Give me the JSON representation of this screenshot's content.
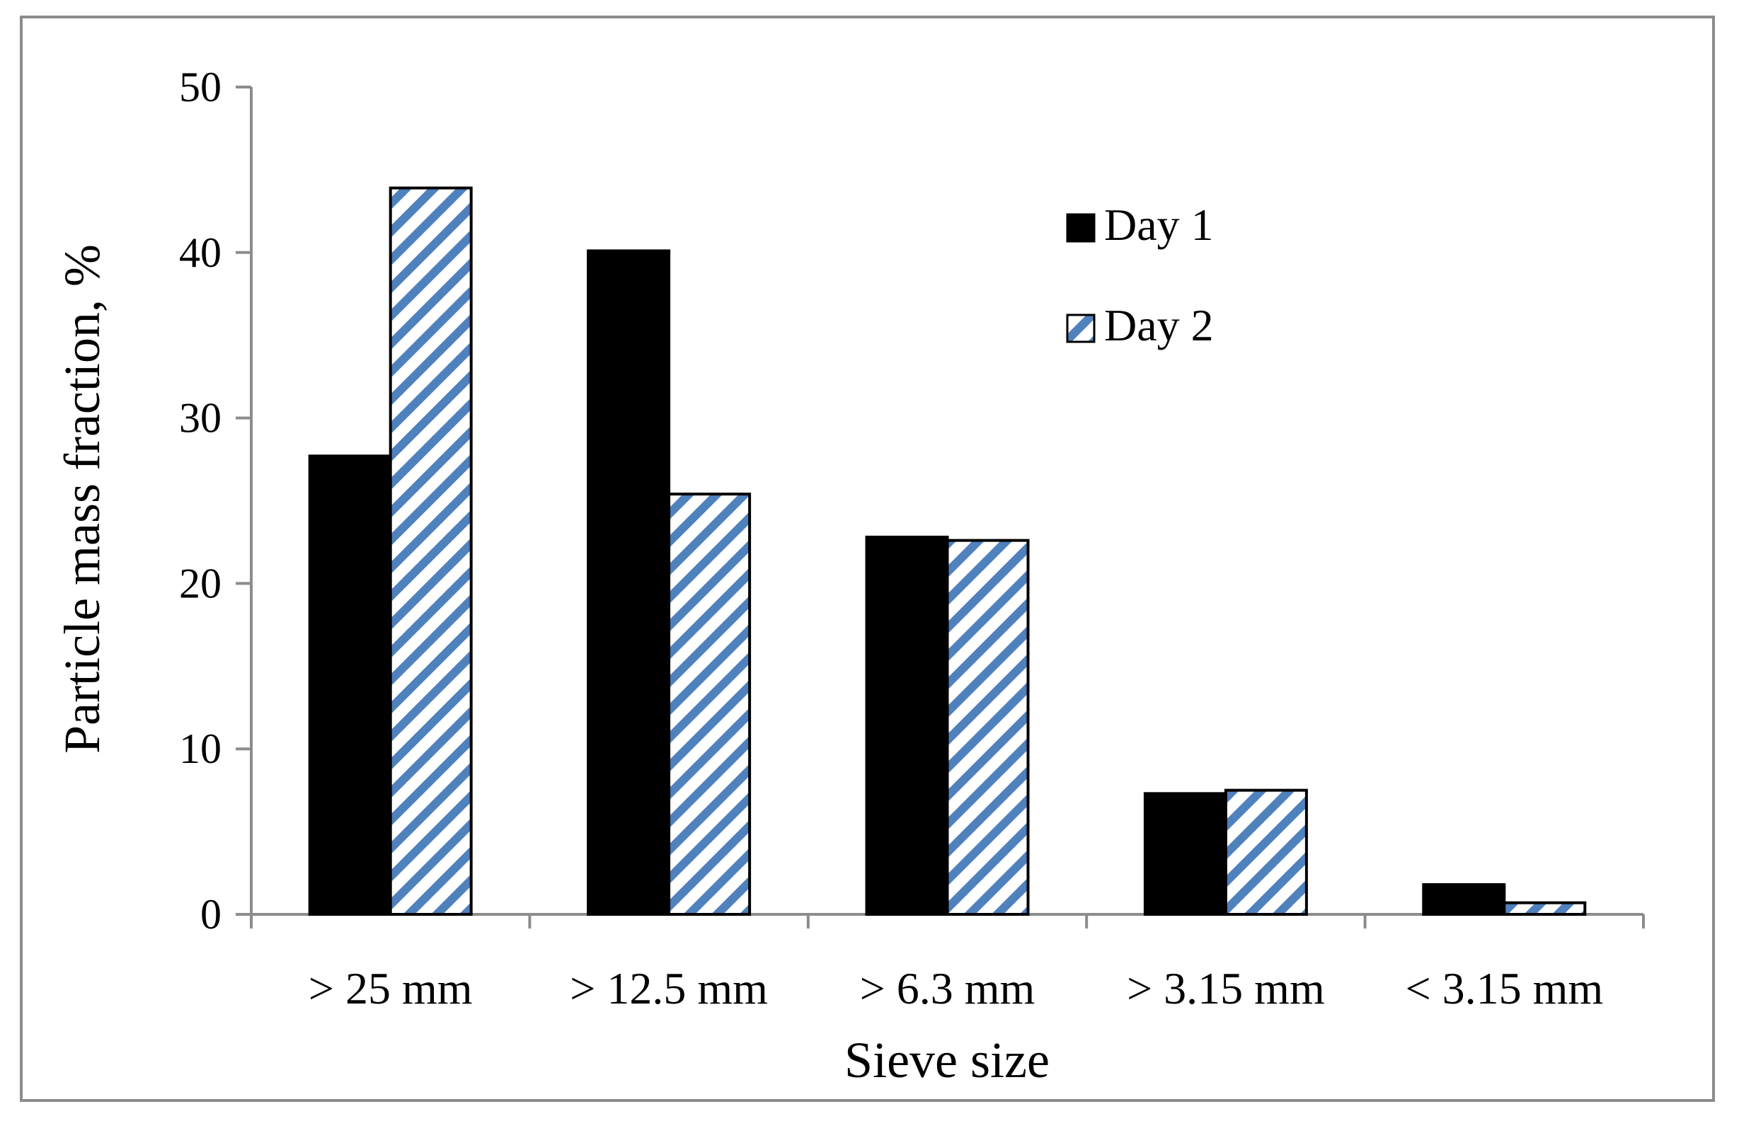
{
  "chart_data": {
    "type": "bar",
    "title": "",
    "xlabel": "Sieve size",
    "ylabel": "Particle mass  fraction, %",
    "categories": [
      "> 25 mm",
      "> 12.5 mm",
      "> 6.3 mm",
      "> 3.15 mm",
      "< 3.15 mm"
    ],
    "series": [
      {
        "name": "Day 1",
        "values": [
          27.7,
          40.1,
          22.8,
          7.3,
          1.8
        ],
        "color": "#000000",
        "pattern": "solid"
      },
      {
        "name": "Day 2",
        "values": [
          43.9,
          25.4,
          22.6,
          7.5,
          0.7
        ],
        "color": "#4f81bd",
        "pattern": "diagonal-stripes"
      }
    ],
    "ylim": [
      0,
      50
    ],
    "yticks": [
      0,
      10,
      20,
      30,
      40,
      50
    ],
    "grid": false,
    "legend_position": "top-right"
  }
}
